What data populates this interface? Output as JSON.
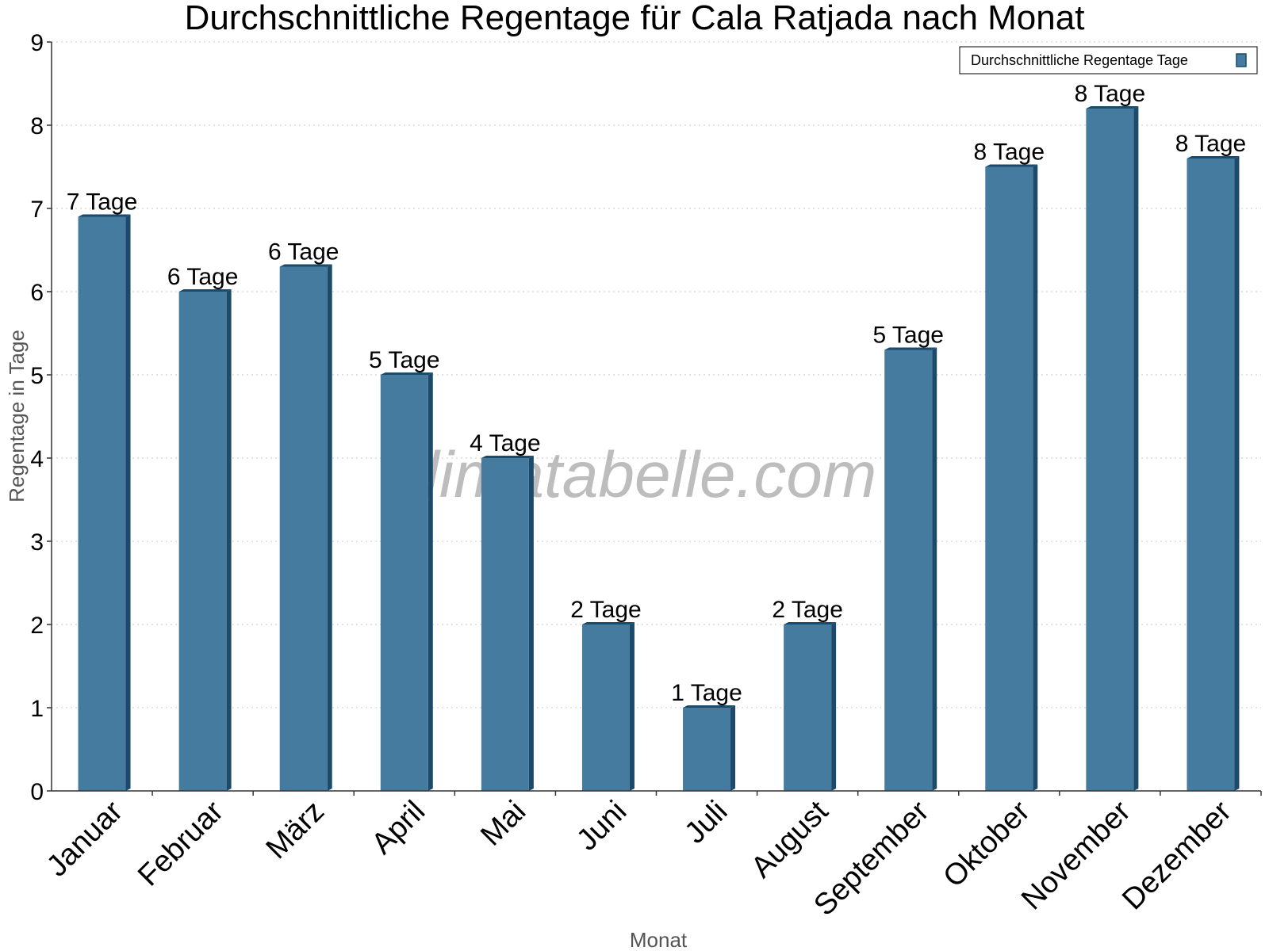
{
  "chart_data": {
    "type": "bar",
    "title": "Durchschnittliche Regentage für Cala Ratjada nach Monat",
    "xlabel": "Monat",
    "ylabel": "Regentage in Tage",
    "ylim": [
      0,
      9
    ],
    "yticks": [
      0,
      1,
      2,
      3,
      4,
      5,
      6,
      7,
      8,
      9
    ],
    "grid": true,
    "legend_position": "top-right",
    "categories": [
      "Januar",
      "Februar",
      "März",
      "April",
      "Mai",
      "Juni",
      "Juli",
      "August",
      "September",
      "Oktober",
      "November",
      "Dezember"
    ],
    "series": [
      {
        "name": "Durchschnittliche Regentage Tage",
        "color": "#467ba0",
        "values": [
          6.9,
          6.0,
          6.3,
          5.0,
          4.0,
          2.0,
          1.0,
          2.0,
          5.3,
          7.5,
          8.2,
          7.6
        ],
        "labels": [
          "7 Tage",
          "6 Tage",
          "6 Tage",
          "5 Tage",
          "4 Tage",
          "2 Tage",
          "1 Tage",
          "2 Tage",
          "5 Tage",
          "8 Tage",
          "8 Tage",
          "8 Tage"
        ]
      }
    ],
    "watermark": "klimatabelle.com"
  }
}
